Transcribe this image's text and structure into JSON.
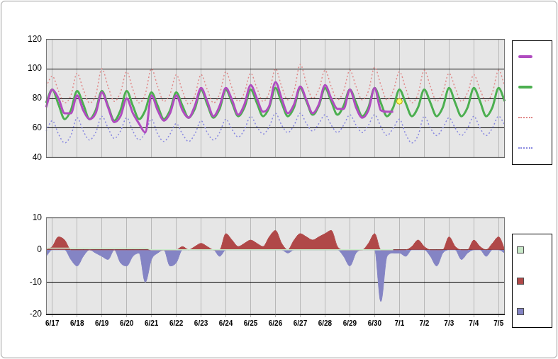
{
  "chart_data": [
    {
      "type": "line",
      "categories": [
        null,
        "6/17",
        null,
        null,
        null,
        "6/18",
        null,
        null,
        null,
        "6/19",
        null,
        null,
        null,
        "6/20",
        null,
        null,
        null,
        "6/21",
        null,
        null,
        null,
        "6/22",
        null,
        null,
        null,
        "6/23",
        null,
        null,
        null,
        "6/24",
        null,
        null,
        null,
        "6/25",
        null,
        null,
        null,
        "6/26",
        null,
        null,
        null,
        "6/27",
        null,
        null,
        null,
        "6/28",
        null,
        null,
        null,
        "6/29",
        null,
        null,
        null,
        "6/30",
        null,
        null,
        null,
        "7/1",
        null,
        null,
        null,
        "7/2",
        null,
        null,
        null,
        "7/3",
        null,
        null,
        null,
        "7/4",
        null,
        null,
        null,
        "7/5",
        null
      ],
      "ylim": [
        40,
        120
      ],
      "yticks": [
        40,
        60,
        80,
        100,
        120
      ],
      "grid": true,
      "legend": "right",
      "tick_labels": "y",
      "series": [
        {
          "color": "#b04cc0",
          "line_style": "solid",
          "marker": "none",
          "values": [
            74,
            86,
            80,
            70,
            70,
            82,
            72,
            66,
            70,
            84,
            74,
            64,
            68,
            80,
            70,
            63,
            57,
            82,
            72,
            65,
            70,
            82,
            72,
            67,
            75,
            87,
            78,
            68,
            75,
            87,
            79,
            69,
            76,
            89,
            80,
            71,
            75,
            91,
            80,
            70,
            76,
            88,
            79,
            70,
            76,
            89,
            80,
            73,
            73,
            86,
            74,
            67,
            72,
            87,
            72,
            71,
            71,
            null,
            null,
            null,
            null,
            null,
            null,
            null,
            null,
            null,
            null,
            null,
            null,
            null,
            null,
            null,
            null,
            null,
            null
          ]
        },
        {
          "color": "#4caf50",
          "line_style": "solid",
          "marker": "none",
          "values": [
            77,
            86,
            76,
            66,
            72,
            85,
            76,
            66,
            72,
            85,
            75,
            65,
            72,
            85,
            75,
            66,
            72,
            84,
            75,
            66,
            72,
            84,
            75,
            67,
            73,
            86,
            76,
            67,
            73,
            86,
            77,
            68,
            74,
            86,
            77,
            68,
            74,
            87,
            77,
            68,
            74,
            87,
            78,
            69,
            75,
            87,
            78,
            69,
            75,
            86,
            77,
            68,
            74,
            87,
            77,
            68,
            74,
            86,
            77,
            68,
            74,
            86,
            77,
            68,
            74,
            87,
            77,
            68,
            74,
            87,
            78,
            68,
            74,
            87,
            78
          ]
        },
        {
          "color": "#e08888",
          "line_style": "dotted",
          "marker": "none",
          "values": [
            88,
            95,
            85,
            77,
            82,
            97,
            86,
            77,
            82,
            100,
            88,
            78,
            84,
            98,
            86,
            77,
            83,
            100,
            88,
            78,
            83,
            96,
            85,
            76,
            82,
            96,
            86,
            77,
            83,
            98,
            87,
            78,
            84,
            97,
            87,
            78,
            84,
            100,
            88,
            79,
            85,
            103,
            90,
            80,
            86,
            99,
            88,
            79,
            85,
            99,
            88,
            79,
            85,
            101,
            89,
            79,
            85,
            98,
            87,
            77,
            83,
            99,
            88,
            78,
            84,
            97,
            87,
            78,
            84,
            96,
            86,
            78,
            84,
            99,
            88
          ]
        },
        {
          "color": "#8888e0",
          "line_style": "dotted",
          "marker": "none",
          "values": [
            58,
            65,
            56,
            50,
            55,
            67,
            58,
            52,
            57,
            68,
            60,
            53,
            58,
            67,
            58,
            52,
            57,
            66,
            56,
            51,
            56,
            63,
            56,
            51,
            56,
            65,
            57,
            52,
            57,
            66,
            59,
            54,
            59,
            68,
            61,
            56,
            61,
            70,
            62,
            57,
            62,
            70,
            63,
            58,
            63,
            69,
            62,
            57,
            62,
            69,
            62,
            57,
            62,
            69,
            61,
            55,
            60,
            66,
            56,
            50,
            55,
            68,
            60,
            55,
            60,
            67,
            60,
            55,
            60,
            68,
            60,
            55,
            60,
            68,
            62
          ]
        },
        {
          "color": "#ffff66",
          "line_style": "none",
          "marker": "circle",
          "values": [
            null,
            null,
            null,
            null,
            null,
            null,
            null,
            null,
            null,
            null,
            null,
            null,
            null,
            null,
            null,
            null,
            null,
            null,
            null,
            null,
            null,
            null,
            null,
            null,
            null,
            null,
            null,
            null,
            null,
            null,
            null,
            null,
            null,
            null,
            null,
            null,
            null,
            null,
            null,
            null,
            null,
            null,
            null,
            null,
            null,
            null,
            null,
            null,
            null,
            null,
            null,
            null,
            null,
            null,
            null,
            null,
            null,
            78,
            null,
            null,
            null,
            null,
            null,
            null,
            null,
            null,
            null,
            null,
            null,
            null,
            null,
            null,
            null,
            null,
            null
          ]
        }
      ]
    },
    {
      "type": "line",
      "categories": [
        null,
        "6/17",
        null,
        null,
        null,
        "6/18",
        null,
        null,
        null,
        "6/19",
        null,
        null,
        null,
        "6/20",
        null,
        null,
        null,
        "6/21",
        null,
        null,
        null,
        "6/22",
        null,
        null,
        null,
        "6/23",
        null,
        null,
        null,
        "6/24",
        null,
        null,
        null,
        "6/25",
        null,
        null,
        null,
        "6/26",
        null,
        null,
        null,
        "6/27",
        null,
        null,
        null,
        "6/28",
        null,
        null,
        null,
        "6/29",
        null,
        null,
        null,
        "6/30",
        null,
        null,
        null,
        "7/1",
        null,
        null,
        null,
        "7/2",
        null,
        null,
        null,
        "7/3",
        null,
        null,
        null,
        "7/4",
        null,
        null,
        null,
        "7/5",
        null
      ],
      "ylim": [
        -20,
        10
      ],
      "yticks": [
        -20,
        -10,
        0,
        10
      ],
      "grid": true,
      "legend": "right",
      "series": [
        {
          "color": "#c8e8c8",
          "type": "line",
          "line_style": "solid",
          "marker": "none",
          "values": [
            0.5,
            0.5,
            0.5,
            0.5,
            0.5,
            0.5,
            0.5,
            0.5,
            0.5,
            0.5,
            0.5,
            0.5,
            0.5,
            0.5,
            0.5,
            0.5,
            0.5,
            0,
            0,
            0,
            0,
            0,
            0,
            0,
            0,
            0,
            0,
            0,
            0,
            0,
            0,
            0,
            0,
            0,
            0,
            0,
            0,
            0,
            0,
            0,
            0,
            0,
            0,
            0,
            0,
            0,
            0,
            0,
            0,
            0,
            0,
            0,
            0,
            0,
            0,
            0,
            0,
            null,
            null,
            null,
            null,
            null,
            null,
            null,
            null,
            null,
            null,
            null,
            null,
            null,
            null,
            null,
            null,
            null,
            null
          ]
        },
        {
          "color": "#b04848",
          "type": "area",
          "line_style": "solid",
          "marker": "none",
          "values": [
            0,
            1,
            4,
            3,
            0,
            0,
            0,
            0,
            0,
            0,
            0,
            0,
            0,
            0,
            0,
            0,
            0,
            0,
            0,
            0,
            0,
            0,
            1,
            0,
            1,
            2,
            1,
            0,
            0,
            5,
            3,
            1,
            2,
            3,
            2,
            1,
            4,
            6,
            2,
            0,
            3,
            5,
            4,
            3,
            4,
            5,
            6,
            1,
            0,
            0,
            0,
            0,
            2,
            5,
            0,
            0,
            0,
            0,
            0,
            1,
            3,
            1,
            0,
            0,
            0,
            4,
            1,
            0,
            0,
            3,
            1,
            0,
            2,
            4,
            0
          ]
        },
        {
          "color": "#8484c4",
          "type": "area",
          "line_style": "solid",
          "marker": "none",
          "values": [
            -2,
            0,
            0,
            0,
            -3,
            -5,
            -2,
            0,
            -1,
            -2,
            -3,
            0,
            -4,
            -5,
            -2,
            -1,
            -10,
            -3,
            -1,
            0,
            -5,
            -4,
            0,
            0,
            0,
            0,
            0,
            0,
            -2,
            0,
            0,
            0,
            0,
            0,
            0,
            0,
            0,
            0,
            0,
            -1,
            0,
            0,
            0,
            0,
            0,
            0,
            0,
            0,
            -2,
            -5,
            -1,
            0,
            0,
            0,
            -16,
            -2,
            -1,
            -1,
            -2,
            0,
            0,
            0,
            -2,
            -5,
            -1,
            0,
            0,
            -3,
            -1,
            0,
            0,
            -2,
            0,
            0,
            -1
          ]
        }
      ]
    }
  ]
}
